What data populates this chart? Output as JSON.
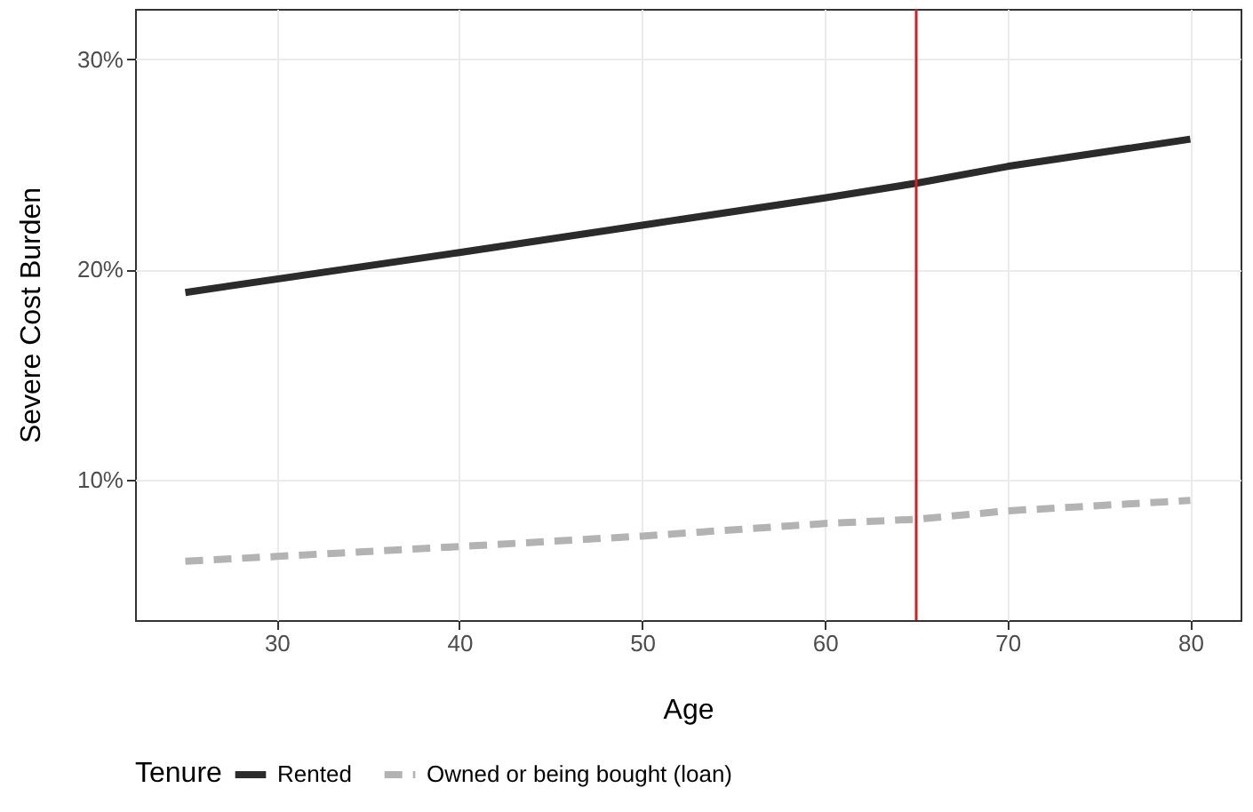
{
  "chart_data": {
    "type": "line",
    "xlabel": "Age",
    "ylabel": "Severe Cost Burden",
    "legend_title": "Tenure",
    "series": [
      {
        "name": "Rented",
        "color": "#2b2b2b",
        "line_style": "solid",
        "x": [
          25,
          40,
          50,
          60,
          65,
          70,
          80
        ],
        "values": [
          18.9,
          20.8,
          22.1,
          23.4,
          24.1,
          24.9,
          26.2
        ]
      },
      {
        "name": "Owned or being bought (loan)",
        "color": "#b3b3b3",
        "line_style": "dashed",
        "x": [
          25,
          40,
          50,
          60,
          65,
          70,
          80
        ],
        "values": [
          6.1,
          6.8,
          7.3,
          7.9,
          8.1,
          8.5,
          9.0
        ]
      }
    ],
    "xlim": [
      22.25,
      82.75
    ],
    "xticks": [
      30,
      40,
      50,
      60,
      70,
      80
    ],
    "ylim": [
      3.3,
      32.4
    ],
    "yticks": [
      {
        "value": 10,
        "label": "10%"
      },
      {
        "value": 20,
        "label": "20%"
      },
      {
        "value": 30,
        "label": "30%"
      }
    ],
    "ref_lines": [
      {
        "axis": "x",
        "value": 65,
        "color": "#cc2222"
      }
    ],
    "grid": true,
    "legend": "bottom"
  }
}
